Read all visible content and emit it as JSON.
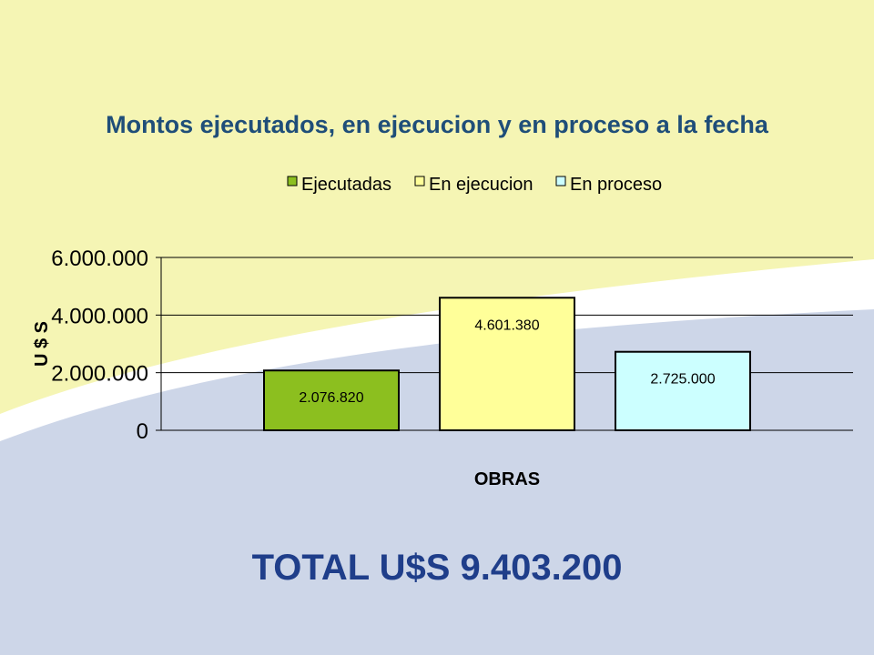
{
  "colors": {
    "background_top": "#f5f5b4",
    "background_bottom": "#cdd6e8",
    "swoosh": "#ffffff",
    "title": "#1f4e79",
    "total": "#1f3e8a"
  },
  "chart_data": {
    "type": "bar",
    "title": "Montos ejecutados, en ejecucion y en proceso a la fecha",
    "xlabel": "OBRAS",
    "ylabel": "U $ S",
    "ylim": [
      0,
      6000000
    ],
    "yticks": [
      {
        "value": 0,
        "label": "0"
      },
      {
        "value": 2000000,
        "label": "2.000.000"
      },
      {
        "value": 4000000,
        "label": "4.000.000"
      },
      {
        "value": 6000000,
        "label": "6.000.000"
      }
    ],
    "grid": true,
    "legend_position": "top",
    "series": [
      {
        "name": "Ejecutadas",
        "value": 2076820,
        "label": "2.076.820",
        "color": "#8cbf1f"
      },
      {
        "name": "En ejecucion",
        "value": 4601380,
        "label": "4.601.380",
        "color": "#ffff99"
      },
      {
        "name": "En proceso",
        "value": 2725000,
        "label": "2.725.000",
        "color": "#ccffff"
      }
    ]
  },
  "total": {
    "text": "TOTAL U$S 9.403.200"
  }
}
